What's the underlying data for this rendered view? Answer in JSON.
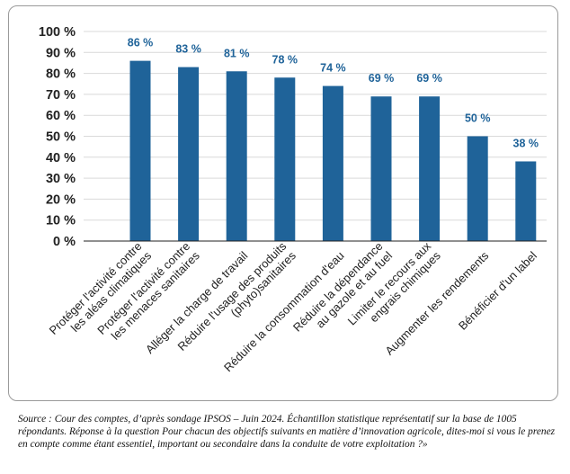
{
  "colors": {
    "bar": "#1f6399",
    "label": "#1f6399",
    "axis": "#222222",
    "grid": "#d9d9d9"
  },
  "chart_data": {
    "type": "bar",
    "categories": [
      "Protéger l'activité contre\nles aléas climatiques",
      "Protéger l'activité contre\nles menaces sanitaires",
      "Alléger la charge de travail",
      "Réduire l'usage des produits\n(phyto)sanitaires",
      "Réduire la consommation d'eau",
      "Réduire la dépendance\nau gazole et au fuel",
      "Limiter le recours aux\nengrais chimiques",
      "Augmenter les rendements",
      "Bénéficier d'un label"
    ],
    "values": [
      86,
      83,
      81,
      78,
      74,
      69,
      69,
      50,
      38
    ],
    "value_labels": [
      "86 %",
      "83 %",
      "81 %",
      "78 %",
      "74 %",
      "69 %",
      "69 %",
      "50 %",
      "38 %"
    ],
    "y_ticks": [
      0,
      10,
      20,
      30,
      40,
      50,
      60,
      70,
      80,
      90,
      100
    ],
    "y_tick_labels": [
      "0 %",
      "10 %",
      "20 %",
      "30 %",
      "40 %",
      "50 %",
      "60 %",
      "70 %",
      "80 %",
      "90 %",
      "100 %"
    ],
    "ylim": [
      0,
      100
    ],
    "grid": true,
    "legend": "none"
  },
  "source_note": "Source : Cour des comptes, d’après sondage IPSOS – Juin 2024. Échantillon statistique représentatif sur la base de 1005 répondants. Réponse à la question Pour chacun des objectifs suivants en matière d’innovation agricole, dites-moi si vous le prenez en compte comme étant essentiel, important ou secondaire dans la conduite de votre exploitation ?»"
}
